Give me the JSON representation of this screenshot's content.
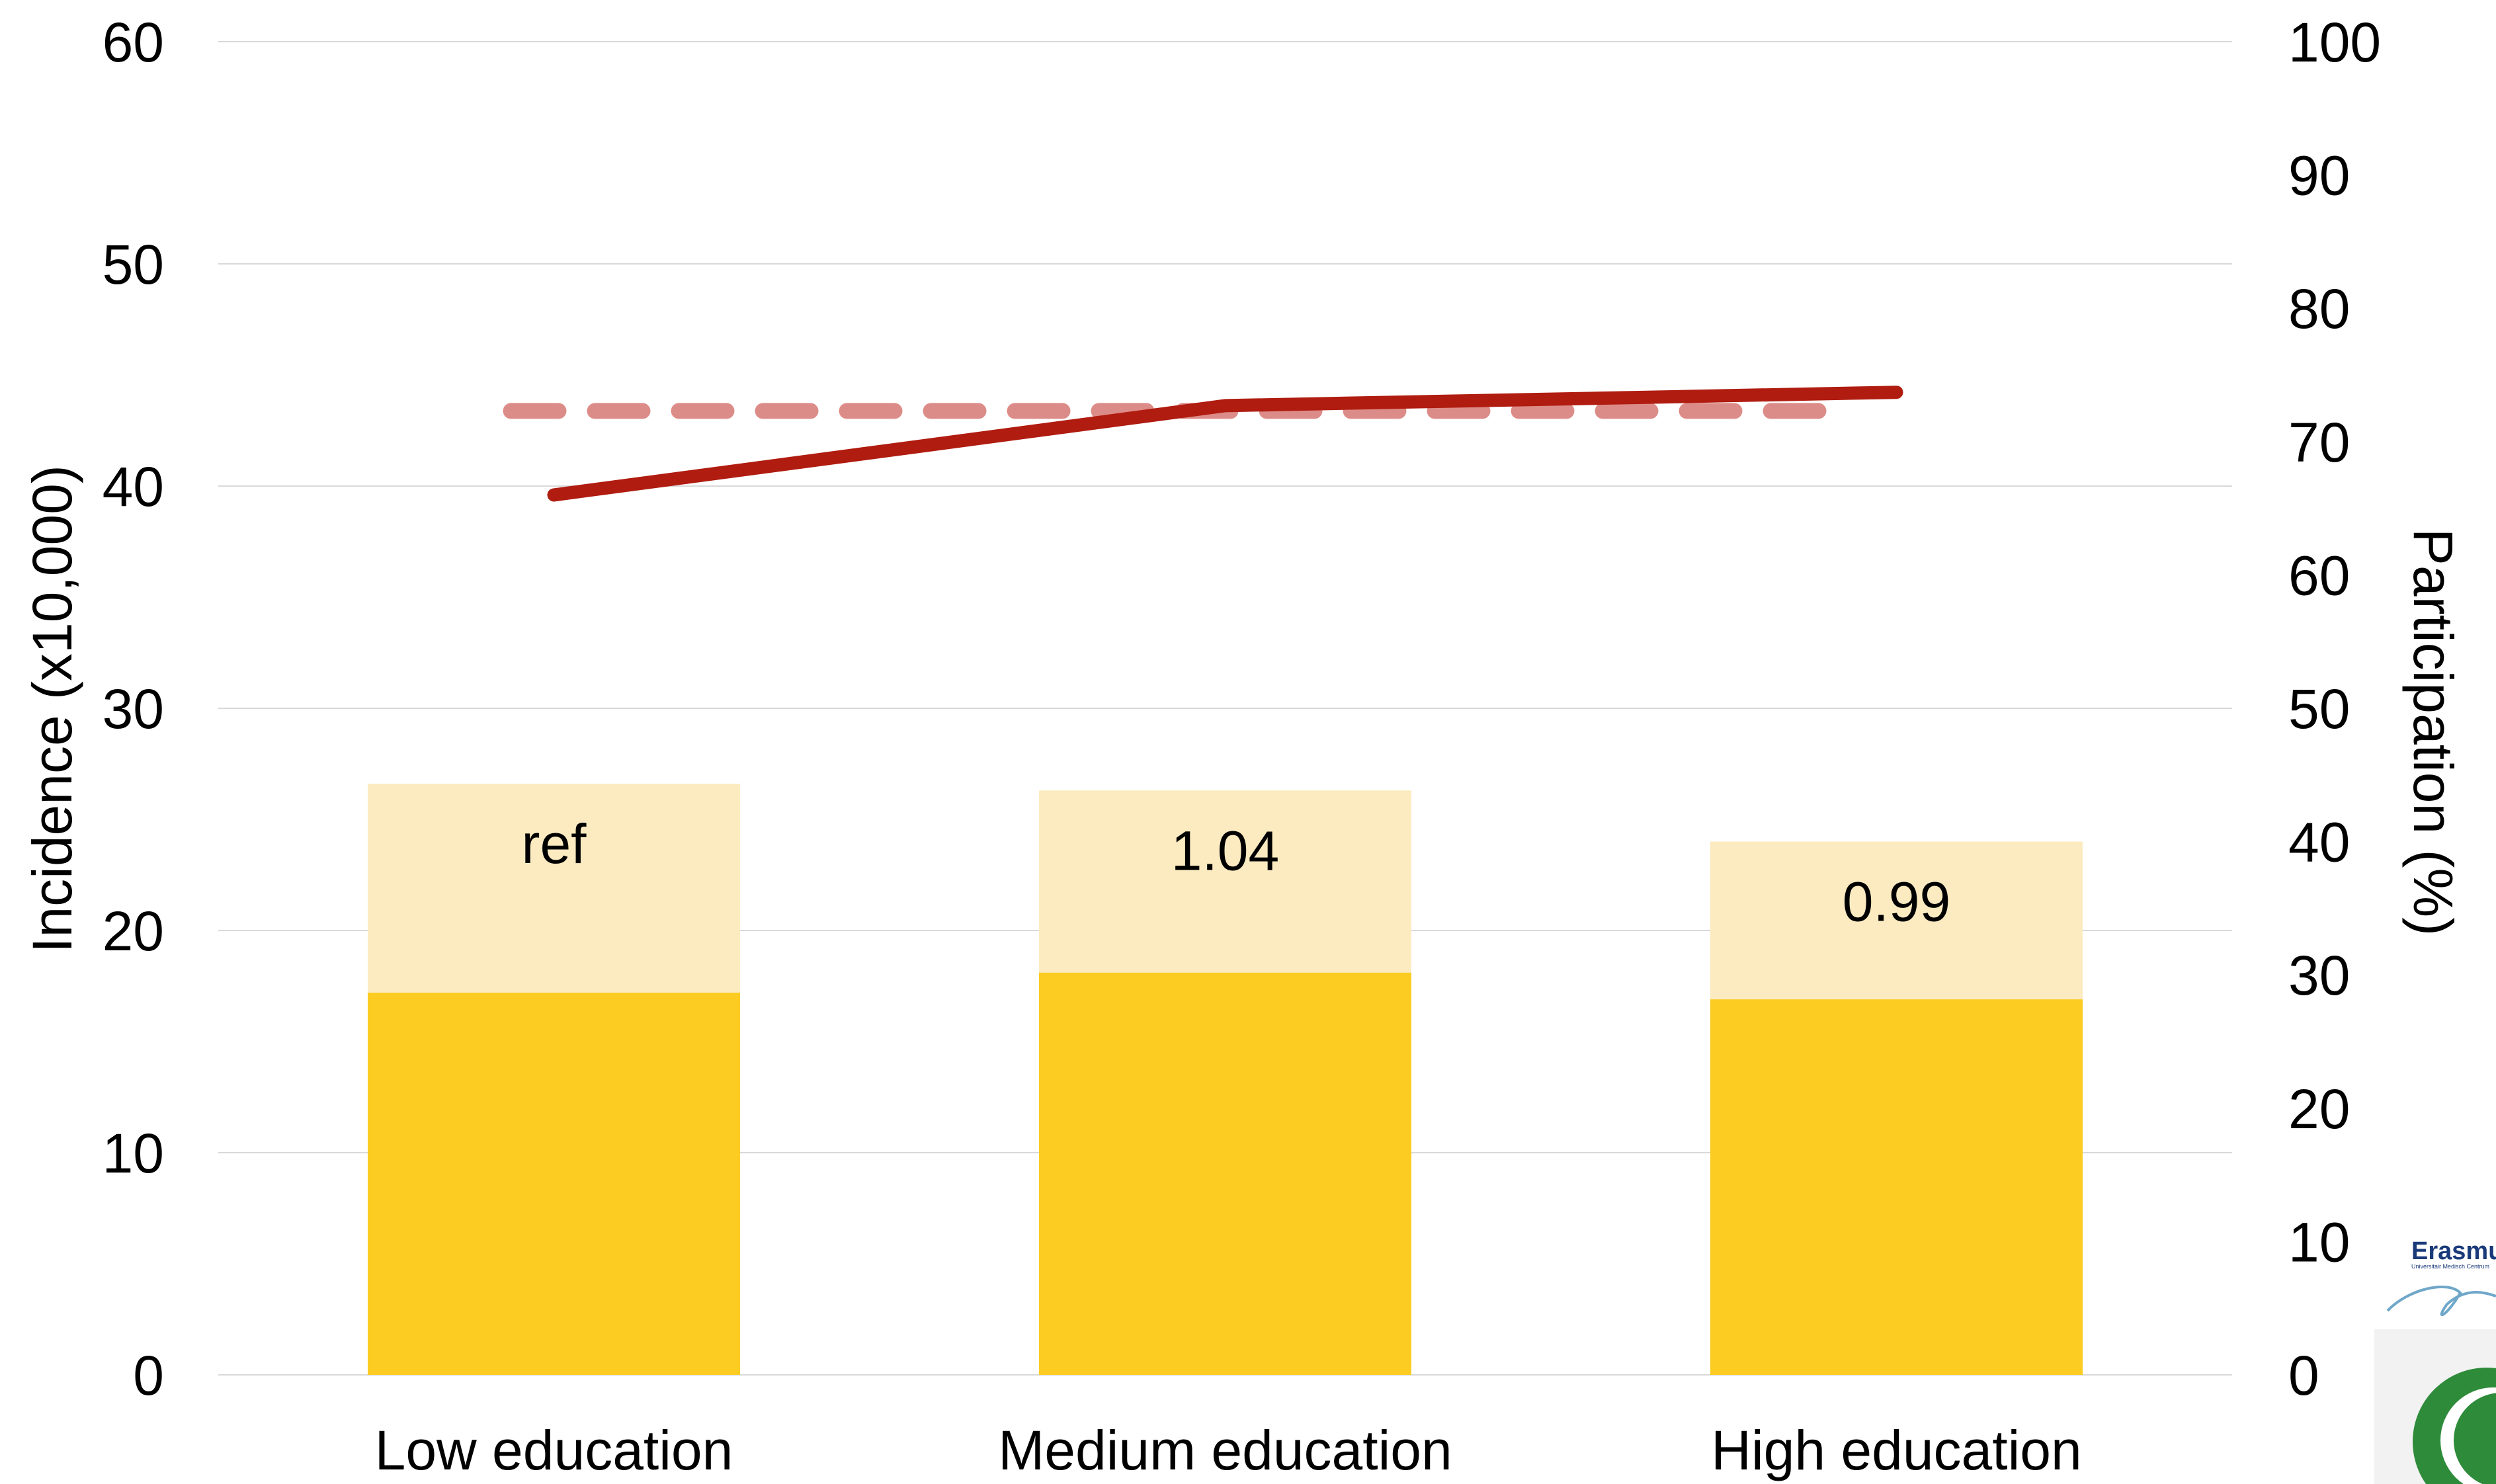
{
  "chart_data": {
    "type": "bar",
    "categories": [
      "Low education",
      "Medium education",
      "High education"
    ],
    "y_left": {
      "label": "Incidence (x10,000)",
      "ylim": [
        0,
        60
      ],
      "ticks": [
        "0",
        "10",
        "20",
        "30",
        "40",
        "50",
        "60"
      ]
    },
    "y_right": {
      "label": "Participation (%)",
      "ylim": [
        0,
        100
      ],
      "ticks": [
        "0",
        "10",
        "20",
        "30",
        "40",
        "50",
        "60",
        "70",
        "80",
        "90",
        "100"
      ]
    },
    "series": [
      {
        "kind": "stacked-bar-bottom",
        "axis": "left",
        "color": "#FCCC22",
        "values": [
          17.2,
          18.1,
          16.9
        ]
      },
      {
        "kind": "stacked-bar-total",
        "axis": "left",
        "color": "#FCEBC0",
        "values": [
          26.6,
          26.3,
          24.0
        ]
      },
      {
        "kind": "line-solid",
        "axis": "right",
        "color": "#B01C10",
        "values": [
          66.0,
          72.7,
          73.7
        ]
      },
      {
        "kind": "line-dashed",
        "axis": "right",
        "color": "#DC8C88",
        "values": [
          72.3,
          72.3,
          72.3
        ]
      }
    ],
    "bar_labels": [
      "ref",
      "1.04",
      "0.99"
    ],
    "grid": true,
    "legend": "none"
  },
  "logo": {
    "text": "Erasmus",
    "subtext": "Universitair Medisch Centrum"
  }
}
